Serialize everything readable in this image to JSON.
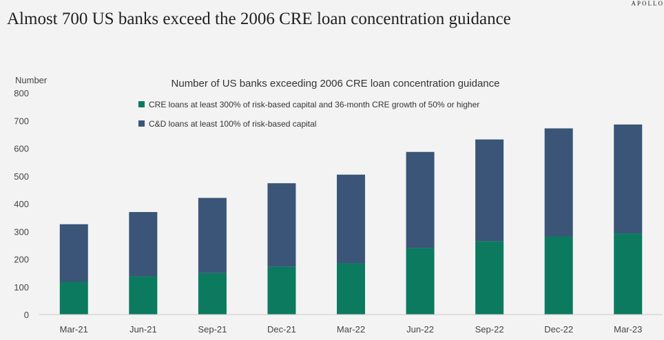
{
  "brand": "APOLLO",
  "headline": "Almost 700 US banks exceed the 2006 CRE loan concentration guidance",
  "colors": {
    "cre": "#0c7a5e",
    "cd": "#3a5577",
    "axis_text": "#444444",
    "background": "#f3f3f3"
  },
  "chart_data": {
    "type": "bar",
    "stacked": true,
    "title": "Number of US banks exceeding 2006 CRE loan concentration guidance",
    "ylabel": "Number",
    "xlabel": "",
    "ylim": [
      0,
      800
    ],
    "yticks": [
      0,
      100,
      200,
      300,
      400,
      500,
      600,
      700,
      800
    ],
    "categories": [
      "Mar-21",
      "Jun-21",
      "Sep-21",
      "Dec-21",
      "Mar-22",
      "Jun-22",
      "Sep-22",
      "Dec-22",
      "Mar-23"
    ],
    "series": [
      {
        "name": "CRE loans at least 300% of risk-based capital and 36-month CRE growth of 50% or higher",
        "color": "#0c7a5e",
        "values": [
          118,
          138,
          150,
          173,
          185,
          240,
          265,
          282,
          293
        ]
      },
      {
        "name": "C&D loans at least 100% of risk-based capital",
        "color": "#3a5577",
        "values": [
          208,
          232,
          271,
          301,
          320,
          347,
          367,
          390,
          393
        ]
      }
    ],
    "legend_position": "top-left",
    "grid": false
  }
}
